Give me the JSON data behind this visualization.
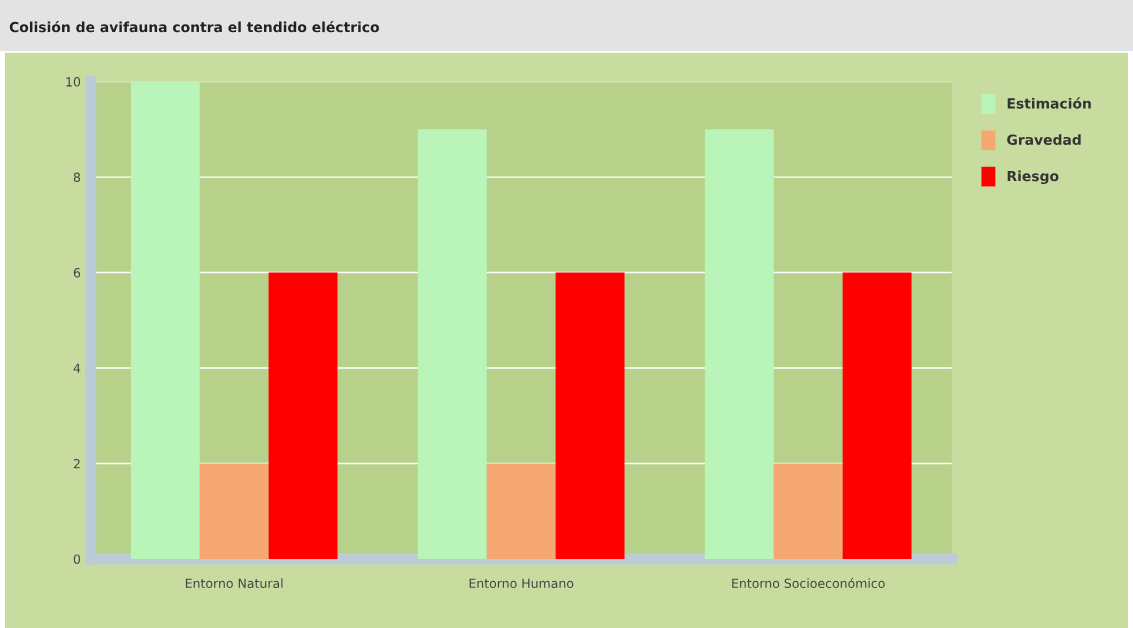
{
  "chart_data": {
    "type": "bar",
    "title": "Colisión de avifauna contra el tendido eléctrico",
    "categories": [
      "Entorno Natural",
      "Entorno Humano",
      "Entorno Socioeconómico"
    ],
    "series": [
      {
        "name": "Estimación",
        "color": "#b9f5b9",
        "values": [
          10,
          9,
          9
        ]
      },
      {
        "name": "Gravedad",
        "color": "#f5a872",
        "values": [
          2,
          2,
          2
        ]
      },
      {
        "name": "Riesgo",
        "color": "#ff0000",
        "values": [
          6,
          6,
          6
        ]
      }
    ],
    "ylim": [
      0,
      10
    ],
    "yticks": [
      0,
      2,
      4,
      6,
      8,
      10
    ],
    "grid": "y",
    "legend": "top right"
  }
}
